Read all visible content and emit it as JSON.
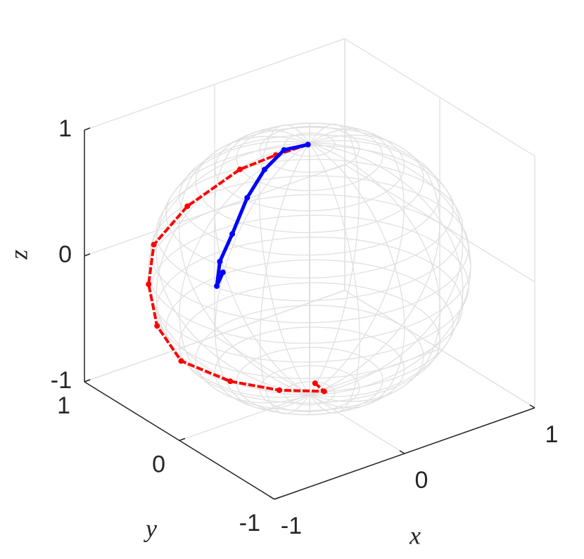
{
  "chart_data": {
    "type": "scatter3",
    "xlabel": "x",
    "ylabel": "y",
    "zlabel": "z",
    "xlim": [
      -1,
      1
    ],
    "ylim": [
      -1,
      1
    ],
    "zlim": [
      -1,
      1
    ],
    "xticks": [
      -1,
      0,
      1
    ],
    "yticks": [
      -1,
      0,
      1
    ],
    "zticks": [
      -1,
      0,
      1
    ],
    "grid": true,
    "series": [
      {
        "color": "#ff0000",
        "x": [
          -0.02,
          -0.23,
          -0.44,
          -0.72,
          -0.81,
          -0.85,
          -0.88,
          -0.87,
          -0.85,
          -0.67,
          -0.45,
          -0.52
        ],
        "y": [
          -0.01,
          0.04,
          0.13,
          0.3,
          0.53,
          0.53,
          0.4,
          0.16,
          -0.33,
          -0.6,
          -0.77,
          -0.77
        ],
        "z": [
          1.0,
          0.97,
          0.89,
          0.62,
          0.24,
          -0.06,
          -0.32,
          -0.49,
          -0.43,
          -0.44,
          -0.45,
          -0.36
        ]
      },
      {
        "color": "#0000ff",
        "x": [
          -0.02,
          -0.16,
          -0.36,
          -0.56,
          -0.74,
          -0.85,
          -0.91,
          -0.87
        ],
        "y": [
          -0.01,
          0.05,
          -0.02,
          -0.11,
          -0.2,
          -0.22,
          -0.27,
          -0.28
        ],
        "z": [
          1.0,
          0.98,
          0.93,
          0.82,
          0.64,
          0.47,
          0.32,
          0.42
        ]
      }
    ]
  }
}
